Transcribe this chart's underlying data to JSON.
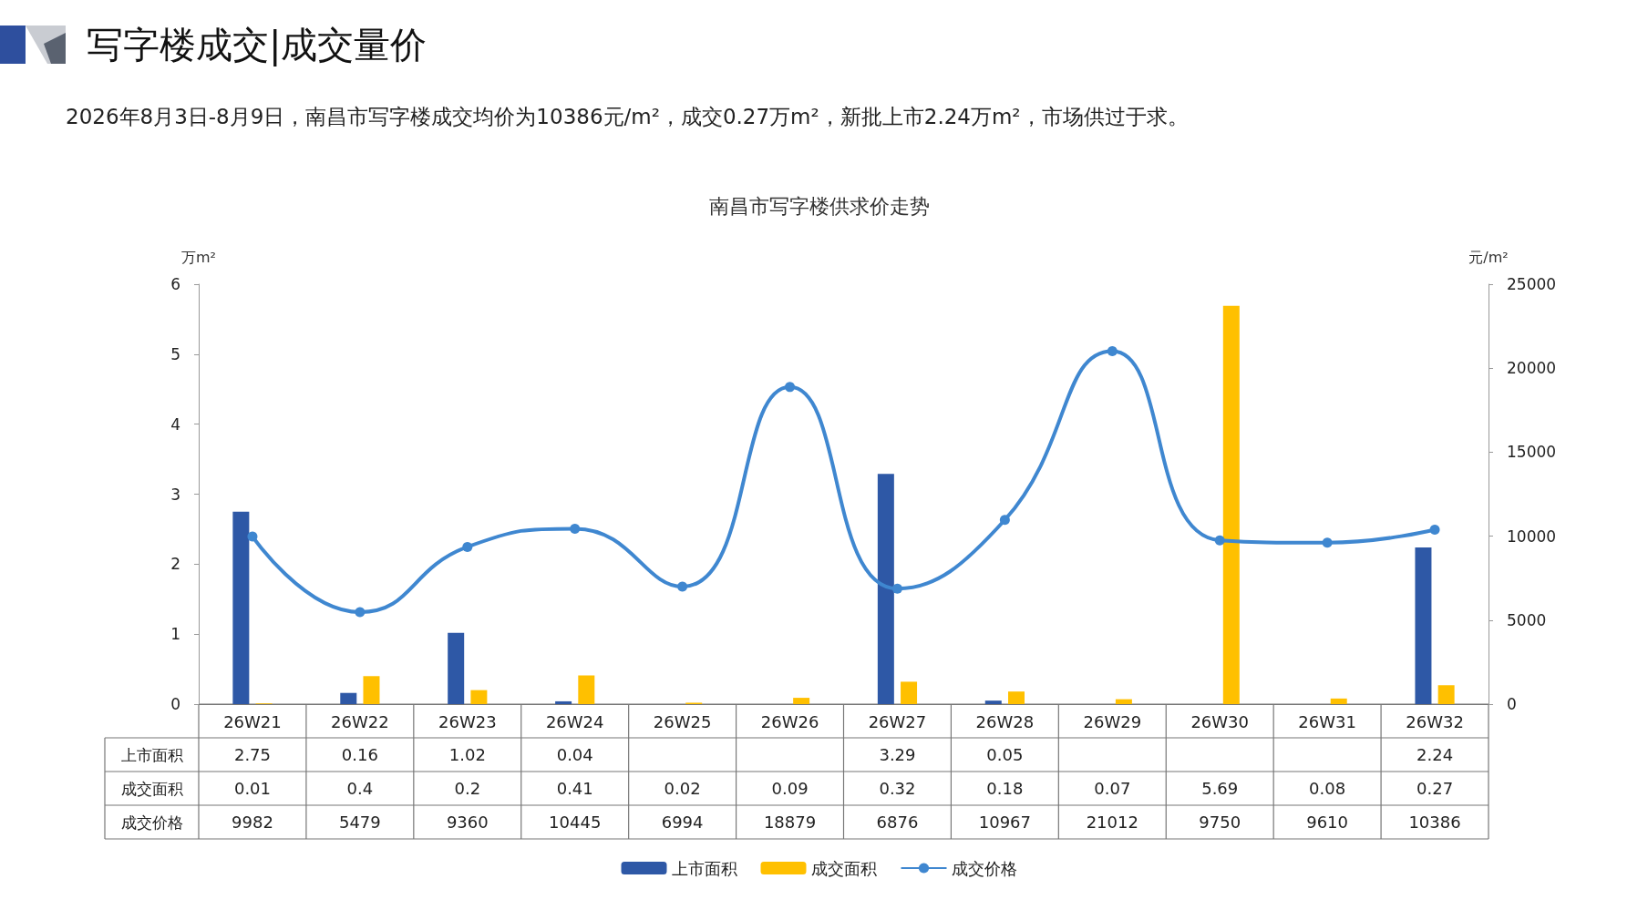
{
  "chart_data": {
    "type": "bar",
    "title": "南昌市写字楼供求价走势",
    "subtitle": "2026年8月3日-8月9日，南昌市写字楼成交均价为10386元/m²，成交0.27万m²，新批上市2.24万m²，市场供过于求。",
    "annotations": [
      "写字楼成交|成交量价"
    ],
    "ylabel": "万m²",
    "y2label": "元/m²",
    "categories": [
      "26W21",
      "26W22",
      "26W23",
      "26W24",
      "26W25",
      "26W26",
      "26W27",
      "26W28",
      "26W29",
      "26W30",
      "26W31",
      "26W32"
    ],
    "series": [
      {
        "name": "上市面积",
        "color": "#2e58a6",
        "values": [
          2.75,
          0.16,
          1.02,
          0.04,
          null,
          null,
          3.29,
          0.05,
          null,
          null,
          null,
          2.24
        ]
      },
      {
        "name": "成交面积",
        "color": "#ffc000",
        "values": [
          0.01,
          0.4,
          0.2,
          0.41,
          0.02,
          0.09,
          0.32,
          0.18,
          0.07,
          5.69,
          0.08,
          0.27
        ]
      },
      {
        "name": "成交价格",
        "type": "line",
        "axis": "y2",
        "color": "#3f87d0",
        "values": [
          9982,
          5479,
          9360,
          10445,
          6994,
          18879,
          6876,
          10967,
          21012,
          9750,
          9610,
          10386
        ]
      }
    ],
    "ylim": [
      0,
      6
    ],
    "yticks": [
      0,
      1,
      2,
      3,
      4,
      5,
      6
    ],
    "y2lim": [
      0,
      25000
    ],
    "y2ticks": [
      0,
      5000,
      10000,
      15000,
      20000,
      25000
    ],
    "legend": "bottom",
    "data_labels": true,
    "marker": "circle"
  }
}
